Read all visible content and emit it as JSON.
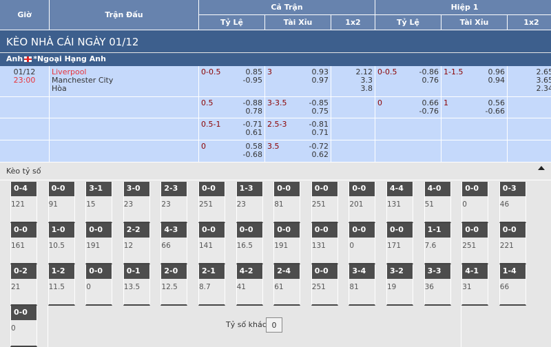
{
  "header": {
    "gio": "Giờ",
    "tran_dau": "Trận Đấu",
    "ca_tran": "Cả Trận",
    "hiep1": "Hiệp 1",
    "ty_le": "Tỷ Lệ",
    "tai_xiu": "Tài Xỉu",
    "x12": "1x2"
  },
  "title": "KÈO NHÀ CÁI NGÀY 01/12",
  "league": {
    "country": "Anh",
    "name": "*Ngoại Hạng Anh",
    "flag": "england-flag"
  },
  "match": {
    "date": "01/12",
    "time": "23:00",
    "home": "Liverpool",
    "away": "Manchester City",
    "draw": "Hòa",
    "home_color": "#e8333a"
  },
  "rows": [
    {
      "ft_hc": "0-0.5",
      "ft_hc_o": [
        "0.85",
        "-0.95"
      ],
      "ft_ou": "3",
      "ft_ou_o": [
        "0.93",
        "0.97"
      ],
      "ft_1x2": [
        "2.12",
        "3.3",
        "3.8"
      ],
      "h1_hc": "0-0.5",
      "h1_hc_o": [
        "-0.86",
        "0.76"
      ],
      "h1_ou": "1-1.5",
      "h1_ou_o": [
        "0.96",
        "0.94"
      ],
      "h1_1x2": [
        "2.65",
        "3.65",
        "2.34"
      ]
    },
    {
      "ft_hc": "0.5",
      "ft_hc_o": [
        "-0.88",
        "0.78"
      ],
      "ft_ou": "3-3.5",
      "ft_ou_o": [
        "-0.85",
        "0.75"
      ],
      "h1_hc": "0",
      "h1_hc_o": [
        "0.66",
        "-0.76"
      ],
      "h1_ou": "1",
      "h1_ou_o": [
        "0.56",
        "-0.66"
      ]
    },
    {
      "ft_hc": "0.5-1",
      "ft_hc_o": [
        "-0.71",
        "0.61"
      ],
      "ft_ou": "2.5-3",
      "ft_ou_o": [
        "-0.81",
        "0.71"
      ]
    },
    {
      "ft_hc": "0",
      "ft_hc_o": [
        "0.58",
        "-0.68"
      ],
      "ft_ou": "3.5",
      "ft_ou_o": [
        "-0.72",
        "0.62"
      ]
    }
  ],
  "correct_score": {
    "title": "Kèo tỷ số",
    "collapse_icon": "caret-up-icon",
    "cells": [
      [
        "0-4",
        "121"
      ],
      [
        "0-0",
        "91"
      ],
      [
        "3-1",
        "15"
      ],
      [
        "3-0",
        "23"
      ],
      [
        "2-3",
        "23"
      ],
      [
        "0-0",
        "251"
      ],
      [
        "1-3",
        "23"
      ],
      [
        "0-0",
        "81"
      ],
      [
        "0-0",
        "251"
      ],
      [
        "0-0",
        "201"
      ],
      [
        "4-4",
        "131"
      ],
      [
        "4-0",
        "51"
      ],
      [
        "0-0",
        "0"
      ],
      [
        "0-3",
        "46"
      ],
      [
        "0-0",
        "161"
      ],
      [
        "1-0",
        "10.5"
      ],
      [
        "0-0",
        "191"
      ],
      [
        "2-2",
        "12"
      ],
      [
        "4-3",
        "66"
      ],
      [
        "0-0",
        "141"
      ],
      [
        "0-0",
        "16.5"
      ],
      [
        "0-0",
        "191"
      ],
      [
        "0-0",
        "131"
      ],
      [
        "0-0",
        "0"
      ],
      [
        "0-0",
        "171"
      ],
      [
        "1-1",
        "7.6"
      ],
      [
        "0-0",
        "251"
      ],
      [
        "0-0",
        "221"
      ],
      [
        "0-2",
        "21"
      ],
      [
        "1-2",
        "11.5"
      ],
      [
        "0-0",
        "0"
      ],
      [
        "0-1",
        "13.5"
      ],
      [
        "2-0",
        "12.5"
      ],
      [
        "2-1",
        "8.7"
      ],
      [
        "4-2",
        "41"
      ],
      [
        "2-4",
        "61"
      ],
      [
        "0-0",
        "251"
      ],
      [
        "3-4",
        "81"
      ],
      [
        "3-2",
        "19"
      ],
      [
        "3-3",
        "36"
      ],
      [
        "4-1",
        "31"
      ],
      [
        "1-4",
        "66"
      ],
      [
        "0-0",
        "0"
      ]
    ],
    "other_label": "Tỷ số khác",
    "other_value": "0"
  }
}
